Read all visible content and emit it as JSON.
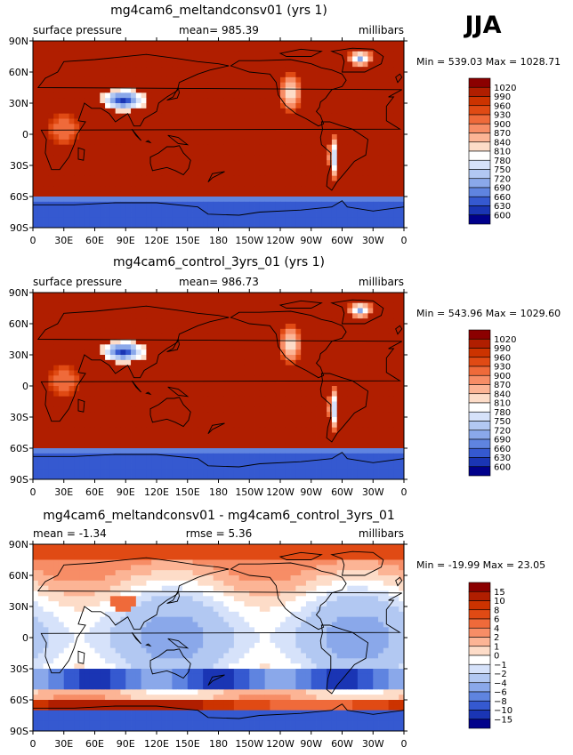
{
  "season": "JJA",
  "chart_data": [
    {
      "type": "heatmap",
      "title": "mg4cam6_meltandconsv01 (yrs 1)",
      "left_label": "surface pressure",
      "center_label": "mean= 985.39",
      "units": "millibars",
      "minmax": "Min = 539.03 Max = 1028.71",
      "xticks": [
        "0",
        "30E",
        "60E",
        "90E",
        "120E",
        "150E",
        "180",
        "150W",
        "120W",
        "90W",
        "60W",
        "30W",
        "0"
      ],
      "yticks": [
        "90N",
        "60N",
        "30N",
        "0",
        "30S",
        "60S",
        "90S"
      ],
      "levels": [
        "1020",
        "990",
        "960",
        "930",
        "900",
        "870",
        "840",
        "810",
        "780",
        "750",
        "720",
        "690",
        "660",
        "630",
        "600"
      ],
      "colors": [
        "#8b0000",
        "#b01e00",
        "#cc3300",
        "#e04a14",
        "#ef6a3a",
        "#f78d66",
        "#fcb495",
        "#fddcc8",
        "#ffffff",
        "#d6e2fa",
        "#b2c8f2",
        "#8aa8ea",
        "#5f84e0",
        "#3559d0",
        "#1a35b4",
        "#00008b"
      ],
      "field": "ps"
    },
    {
      "type": "heatmap",
      "title": "mg4cam6_control_3yrs_01 (yrs 1)",
      "left_label": "surface pressure",
      "center_label": "mean= 986.73",
      "units": "millibars",
      "minmax": "Min = 543.96 Max = 1029.60",
      "xticks": [
        "0",
        "30E",
        "60E",
        "90E",
        "120E",
        "150E",
        "180",
        "150W",
        "120W",
        "90W",
        "60W",
        "30W",
        "0"
      ],
      "yticks": [
        "90N",
        "60N",
        "30N",
        "0",
        "30S",
        "60S",
        "90S"
      ],
      "levels": [
        "1020",
        "990",
        "960",
        "930",
        "900",
        "870",
        "840",
        "810",
        "780",
        "750",
        "720",
        "690",
        "660",
        "630",
        "600"
      ],
      "colors": [
        "#8b0000",
        "#b01e00",
        "#cc3300",
        "#e04a14",
        "#ef6a3a",
        "#f78d66",
        "#fcb495",
        "#fddcc8",
        "#ffffff",
        "#d6e2fa",
        "#b2c8f2",
        "#8aa8ea",
        "#5f84e0",
        "#3559d0",
        "#1a35b4",
        "#00008b"
      ],
      "field": "ps"
    },
    {
      "type": "heatmap",
      "title": "mg4cam6_meltandconsv01 - mg4cam6_control_3yrs_01",
      "left_label": "mean =  -1.34",
      "center_label": "rmse =   5.36",
      "units": "millibars",
      "minmax": "Min = -19.99 Max =  23.05",
      "xticks": [
        "0",
        "30E",
        "60E",
        "90E",
        "120E",
        "150E",
        "180",
        "150W",
        "120W",
        "90W",
        "60W",
        "30W",
        "0"
      ],
      "yticks": [
        "90N",
        "60N",
        "30N",
        "0",
        "30S",
        "60S",
        "90S"
      ],
      "levels": [
        "15",
        "10",
        "8",
        "6",
        "4",
        "2",
        "1",
        "0",
        "−1",
        "−2",
        "−4",
        "−6",
        "−8",
        "−10",
        "−15"
      ],
      "colors": [
        "#8b0000",
        "#b01e00",
        "#cc3300",
        "#e04a14",
        "#ef6a3a",
        "#f78d66",
        "#fcb495",
        "#fddcc8",
        "#ffffff",
        "#d6e2fa",
        "#b2c8f2",
        "#8aa8ea",
        "#5f84e0",
        "#3559d0",
        "#1a35b4",
        "#00008b"
      ],
      "field": "diff"
    }
  ]
}
